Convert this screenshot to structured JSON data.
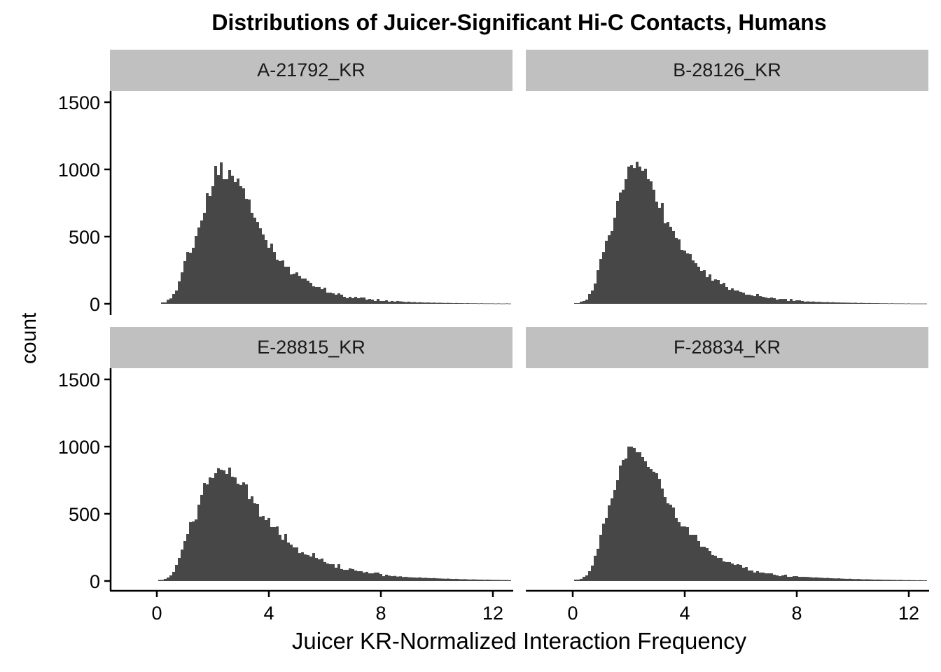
{
  "title": "Distributions of Juicer-Significant Hi-C Contacts, Humans",
  "axes": {
    "xlabel": "Juicer KR-Normalized Interaction Frequency",
    "ylabel": "count",
    "x_ticks": [
      "0",
      "4",
      "8",
      "12"
    ],
    "y_ticks": [
      "0",
      "500",
      "1000",
      "1500"
    ]
  },
  "colors": {
    "bar": "#474747",
    "strip": "#c0c0c0",
    "axis": "#000000"
  },
  "panels": [
    {
      "label": "A-21792_KR"
    },
    {
      "label": "B-28126_KR"
    },
    {
      "label": "E-28815_KR"
    },
    {
      "label": "F-28834_KR"
    }
  ],
  "chart_data": {
    "type": "bar",
    "subtype": "faceted histogram",
    "title": "Distributions of Juicer-Significant Hi-C Contacts, Humans",
    "xlabel": "Juicer KR-Normalized Interaction Frequency",
    "ylabel": "count",
    "xlim": [
      -1.6,
      12.6
    ],
    "ylim": [
      -80,
      1580
    ],
    "x_ticks": [
      0,
      4,
      8,
      12
    ],
    "y_ticks": [
      0,
      500,
      1000,
      1500
    ],
    "bin_width": 0.1,
    "grid": false,
    "facets": [
      "A-21792_KR",
      "B-28126_KR",
      "E-28815_KR",
      "F-28834_KR"
    ],
    "series": [
      {
        "name": "A-21792_KR",
        "bin_start": 0.15,
        "values": [
          10,
          10,
          30,
          40,
          73,
          99,
          167,
          234,
          318,
          385,
          380,
          417,
          505,
          568,
          620,
          677,
          823,
          802,
          875,
          1026,
          958,
          1052,
          927,
          927,
          995,
          953,
          906,
          932,
          875,
          859,
          781,
          776,
          677,
          641,
          609,
          562,
          516,
          474,
          417,
          448,
          385,
          328,
          318,
          323,
          276,
          276,
          219,
          224,
          234,
          208,
          188,
          188,
          172,
          156,
          130,
          125,
          125,
          109,
          120,
          83,
          83,
          78,
          68,
          78,
          68,
          52,
          42,
          52,
          42,
          52,
          42,
          47,
          47,
          31,
          36,
          31,
          21,
          36,
          21,
          21,
          26,
          16,
          21,
          16,
          21,
          18,
          16,
          13,
          16,
          12,
          13,
          10,
          12,
          10,
          9,
          10,
          8,
          9,
          7,
          8,
          7,
          6,
          7,
          6,
          5,
          6,
          5,
          5,
          4,
          5,
          4,
          4,
          4,
          3,
          4,
          3,
          3,
          3,
          3,
          2,
          3,
          2,
          2,
          3,
          2,
          2
        ]
      },
      {
        "name": "B-28126_KR",
        "bin_start": 0.05,
        "values": [
          5,
          5,
          16,
          21,
          31,
          73,
          99,
          151,
          250,
          333,
          385,
          469,
          510,
          542,
          641,
          766,
          828,
          849,
          927,
          1021,
          1031,
          1010,
          1057,
          1021,
          990,
          1005,
          927,
          911,
          849,
          760,
          714,
          750,
          599,
          609,
          573,
          542,
          490,
          479,
          401,
          396,
          375,
          370,
          323,
          302,
          276,
          245,
          250,
          198,
          219,
          172,
          182,
          177,
          146,
          156,
          125,
          104,
          115,
          99,
          99,
          89,
          83,
          68,
          68,
          63,
          57,
          73,
          57,
          52,
          47,
          42,
          47,
          42,
          31,
          36,
          36,
          36,
          21,
          36,
          21,
          26,
          26,
          21,
          16,
          18,
          16,
          17,
          14,
          15,
          13,
          12,
          13,
          11,
          12,
          10,
          10,
          9,
          9,
          8,
          8,
          7,
          8,
          6,
          7,
          6,
          5,
          6,
          5,
          5,
          5,
          4,
          4,
          4,
          3,
          4,
          3,
          3,
          3,
          3,
          2,
          3,
          2,
          2,
          2,
          2,
          2,
          2,
          2
        ]
      },
      {
        "name": "E-28815_KR",
        "bin_start": 0.05,
        "values": [
          8,
          8,
          16,
          26,
          42,
          68,
          120,
          172,
          234,
          297,
          349,
          438,
          443,
          458,
          568,
          641,
          729,
          719,
          771,
          766,
          802,
          839,
          828,
          823,
          797,
          844,
          776,
          771,
          724,
          714,
          734,
          719,
          609,
          630,
          578,
          573,
          479,
          484,
          453,
          469,
          401,
          401,
          406,
          344,
          307,
          349,
          286,
          271,
          250,
          250,
          208,
          214,
          198,
          193,
          182,
          208,
          172,
          161,
          167,
          141,
          130,
          125,
          125,
          99,
          125,
          89,
          83,
          83,
          94,
          89,
          78,
          73,
          73,
          63,
          68,
          57,
          57,
          63,
          63,
          52,
          36,
          47,
          40,
          36,
          38,
          33,
          35,
          30,
          31,
          28,
          27,
          26,
          25,
          27,
          23,
          24,
          22,
          21,
          22,
          20,
          19,
          18,
          17,
          18,
          16,
          15,
          16,
          14,
          13,
          14,
          12,
          11,
          12,
          11,
          10,
          10,
          9,
          10,
          9,
          8,
          8,
          8,
          7,
          7,
          7,
          6
        ]
      },
      {
        "name": "F-28834_KR",
        "bin_start": 0.05,
        "values": [
          10,
          10,
          16,
          31,
          42,
          73,
          115,
          188,
          240,
          344,
          427,
          469,
          563,
          615,
          677,
          750,
          859,
          901,
          911,
          1000,
          1000,
          990,
          958,
          958,
          922,
          891,
          849,
          833,
          813,
          802,
          760,
          688,
          625,
          578,
          568,
          547,
          469,
          438,
          406,
          406,
          401,
          344,
          344,
          344,
          297,
          255,
          255,
          245,
          224,
          193,
          188,
          172,
          172,
          146,
          141,
          141,
          130,
          120,
          125,
          120,
          99,
          104,
          78,
          78,
          63,
          73,
          63,
          63,
          57,
          57,
          57,
          47,
          42,
          36,
          42,
          47,
          31,
          31,
          36,
          36,
          31,
          31,
          31,
          30,
          28,
          26,
          27,
          25,
          24,
          22,
          23,
          21,
          20,
          19,
          20,
          18,
          17,
          16,
          17,
          15,
          14,
          15,
          13,
          12,
          13,
          12,
          11,
          10,
          11,
          10,
          9,
          9,
          9,
          8,
          8,
          7,
          8,
          7,
          6,
          7,
          6,
          6,
          5,
          6,
          5,
          5,
          5
        ]
      }
    ],
    "legend": null
  }
}
